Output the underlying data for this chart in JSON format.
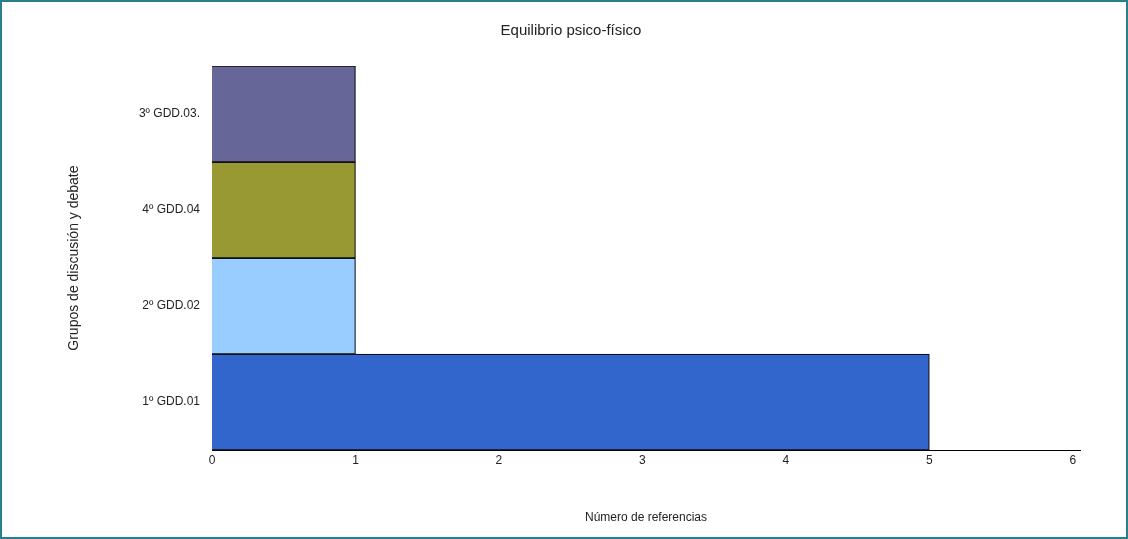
{
  "chart_data": {
    "type": "bar",
    "orientation": "horizontal",
    "title": "Equilibrio psico-físico",
    "xlabel": "Número de referencias",
    "ylabel": "Grupos de discusión y debate",
    "categories": [
      "3º GDD.03.",
      "4º GDD.04",
      "2º GDD.02",
      "1º GDD.01"
    ],
    "values": [
      1,
      1,
      1,
      5
    ],
    "colors": [
      "#666699",
      "#999933",
      "#99ccff",
      "#3366cc"
    ],
    "xlim": [
      0,
      6.05
    ],
    "xticks": [
      0,
      1,
      2,
      3,
      4,
      5,
      6
    ],
    "grid": false,
    "legend": false
  }
}
